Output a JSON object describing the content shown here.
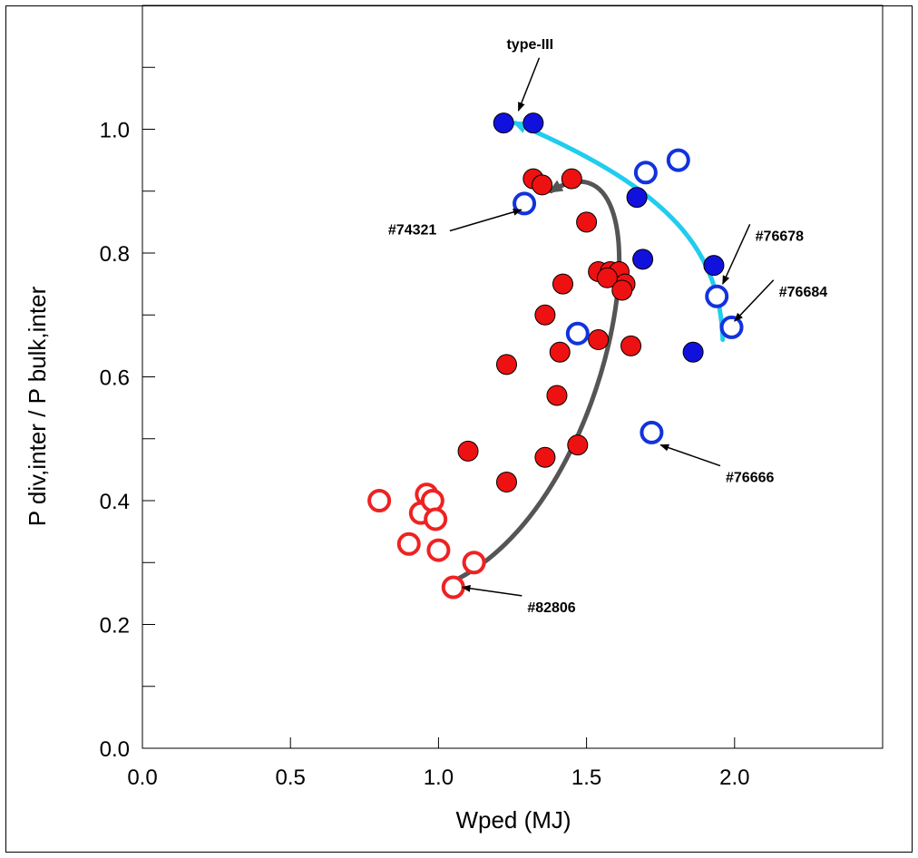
{
  "chart_data": {
    "type": "scatter",
    "title": "",
    "xlabel": "Wped  (MJ)",
    "ylabel": "P div,inter  /  P bulk,inter",
    "xlim": [
      0.0,
      2.5
    ],
    "ylim": [
      0.0,
      1.2
    ],
    "x_ticks": [
      0.0,
      0.5,
      1.0,
      1.5,
      2.0
    ],
    "x_tick_labels": [
      "0.0",
      "0.5",
      "1.0",
      "1.5",
      "2.0"
    ],
    "y_ticks": [
      0.0,
      0.2,
      0.4,
      0.6,
      0.8,
      1.0
    ],
    "y_tick_labels": [
      "0.0",
      "0.2",
      "0.4",
      "0.6",
      "0.8",
      "1.0"
    ],
    "y_minor_ticks": [
      0.1,
      0.3,
      0.5,
      0.7,
      0.9,
      1.1
    ],
    "grid": false,
    "colors": {
      "red_fill": "#ee1111",
      "red_open": "#ee2222",
      "blue_fill": "#1111dd",
      "blue_open": "#1133dd",
      "gray_arrow": "#555555",
      "cyan_arrow": "#22ccee"
    },
    "series": [
      {
        "marker": "filled",
        "color": "red_fill",
        "points": [
          [
            1.32,
            0.92
          ],
          [
            1.35,
            0.91
          ],
          [
            1.45,
            0.92
          ],
          [
            1.5,
            0.85
          ],
          [
            1.54,
            0.77
          ],
          [
            1.58,
            0.77
          ],
          [
            1.61,
            0.77
          ],
          [
            1.63,
            0.75
          ],
          [
            1.57,
            0.76
          ],
          [
            1.62,
            0.74
          ],
          [
            1.42,
            0.75
          ],
          [
            1.36,
            0.7
          ],
          [
            1.41,
            0.64
          ],
          [
            1.54,
            0.66
          ],
          [
            1.65,
            0.65
          ],
          [
            1.23,
            0.62
          ],
          [
            1.4,
            0.57
          ],
          [
            1.1,
            0.48
          ],
          [
            1.36,
            0.47
          ],
          [
            1.47,
            0.49
          ],
          [
            1.23,
            0.43
          ]
        ]
      },
      {
        "marker": "open",
        "color": "red_open",
        "points": [
          [
            0.8,
            0.4
          ],
          [
            0.94,
            0.38
          ],
          [
            0.96,
            0.41
          ],
          [
            0.98,
            0.4
          ],
          [
            0.99,
            0.37
          ],
          [
            0.9,
            0.33
          ],
          [
            1.0,
            0.32
          ],
          [
            1.12,
            0.3
          ],
          [
            1.05,
            0.26
          ]
        ]
      },
      {
        "marker": "filled",
        "color": "blue_fill",
        "points": [
          [
            1.22,
            1.01
          ],
          [
            1.32,
            1.01
          ],
          [
            1.67,
            0.89
          ],
          [
            1.69,
            0.79
          ],
          [
            1.93,
            0.78
          ],
          [
            1.86,
            0.64
          ]
        ]
      },
      {
        "marker": "open",
        "color": "blue_open",
        "points": [
          [
            1.29,
            0.88
          ],
          [
            1.7,
            0.93
          ],
          [
            1.81,
            0.95
          ],
          [
            1.94,
            0.73
          ],
          [
            1.99,
            0.68
          ],
          [
            1.47,
            0.67
          ],
          [
            1.72,
            0.51
          ]
        ]
      }
    ],
    "trend_arrows": [
      {
        "color": "gray_arrow",
        "from": [
          1.05,
          0.27
        ],
        "control1": [
          1.62,
          0.4
        ],
        "control2": [
          1.8,
          1.02
        ],
        "to": [
          1.38,
          0.9
        ]
      },
      {
        "color": "cyan_arrow",
        "from": [
          1.96,
          0.66
        ],
        "control1": [
          1.95,
          0.8
        ],
        "control2": [
          1.8,
          0.9
        ],
        "to": [
          1.26,
          1.01
        ]
      }
    ],
    "annotations": [
      {
        "text": "type-III",
        "tip": [
          1.27,
          1.03
        ],
        "label_at": [
          1.23,
          1.13
        ]
      },
      {
        "text": "#74321",
        "tip": [
          1.28,
          0.87
        ],
        "label_at": [
          0.83,
          0.83
        ]
      },
      {
        "text": "#76678",
        "tip": [
          1.96,
          0.75
        ],
        "label_at": [
          2.07,
          0.82
        ]
      },
      {
        "text": "#76684",
        "tip": [
          2.0,
          0.69
        ],
        "label_at": [
          2.15,
          0.73
        ]
      },
      {
        "text": "#76666",
        "tip": [
          1.75,
          0.49
        ],
        "label_at": [
          1.97,
          0.43
        ]
      },
      {
        "text": "#82806",
        "tip": [
          1.08,
          0.26
        ],
        "label_at": [
          1.3,
          0.22
        ]
      }
    ]
  }
}
